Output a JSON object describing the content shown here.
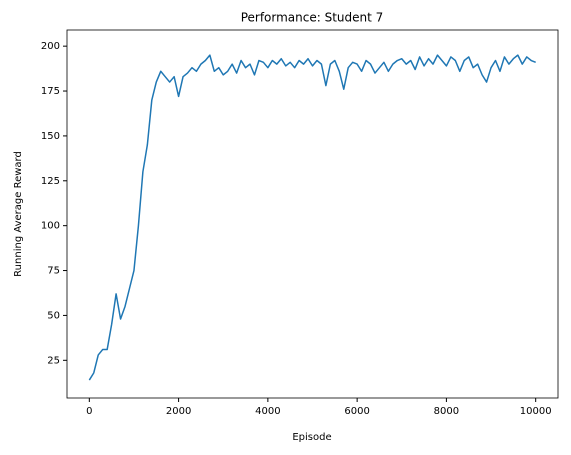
{
  "chart_data": {
    "type": "line",
    "title": "Performance: Student 7",
    "xlabel": "Episode",
    "ylabel": "Running Average Reward",
    "x": [
      0,
      100,
      200,
      300,
      400,
      500,
      600,
      700,
      800,
      900,
      1000,
      1100,
      1200,
      1300,
      1400,
      1500,
      1600,
      1700,
      1800,
      1900,
      2000,
      2100,
      2200,
      2300,
      2400,
      2500,
      2600,
      2700,
      2800,
      2900,
      3000,
      3100,
      3200,
      3300,
      3400,
      3500,
      3600,
      3700,
      3800,
      3900,
      4000,
      4100,
      4200,
      4300,
      4400,
      4500,
      4600,
      4700,
      4800,
      4900,
      5000,
      5100,
      5200,
      5300,
      5400,
      5500,
      5600,
      5700,
      5800,
      5900,
      6000,
      6100,
      6200,
      6300,
      6400,
      6500,
      6600,
      6700,
      6800,
      6900,
      7000,
      7100,
      7200,
      7300,
      7400,
      7500,
      7600,
      7700,
      7800,
      7900,
      8000,
      8100,
      8200,
      8300,
      8400,
      8500,
      8600,
      8700,
      8800,
      8900,
      9000,
      9100,
      9200,
      9300,
      9400,
      9500,
      9600,
      9700,
      9800,
      9900,
      10000
    ],
    "series": [
      {
        "color": "#1f77b4",
        "values": [
          14,
          18,
          28,
          31,
          31,
          45,
          62,
          48,
          55,
          65,
          75,
          100,
          130,
          145,
          170,
          180,
          186,
          183,
          180,
          183,
          172,
          183,
          185,
          188,
          186,
          190,
          192,
          195,
          186,
          188,
          184,
          186,
          190,
          185,
          192,
          188,
          190,
          184,
          192,
          191,
          188,
          192,
          190,
          193,
          189,
          191,
          188,
          192,
          190,
          193,
          189,
          192,
          190,
          178,
          190,
          192,
          186,
          176,
          188,
          191,
          190,
          186,
          192,
          190,
          185,
          188,
          191,
          186,
          190,
          192,
          193,
          190,
          192,
          187,
          194,
          189,
          193,
          190,
          195,
          192,
          189,
          194,
          192,
          186,
          192,
          194,
          188,
          190,
          184,
          180,
          188,
          192,
          186,
          194,
          190,
          193,
          195,
          190,
          194,
          192,
          191
        ]
      }
    ],
    "xlim": [
      -500,
      10500
    ],
    "ylim": [
      4,
      209
    ],
    "xticks": [
      0,
      2000,
      4000,
      6000,
      8000,
      10000
    ],
    "yticks": [
      25,
      50,
      75,
      100,
      125,
      150,
      175,
      200
    ],
    "grid": false
  }
}
